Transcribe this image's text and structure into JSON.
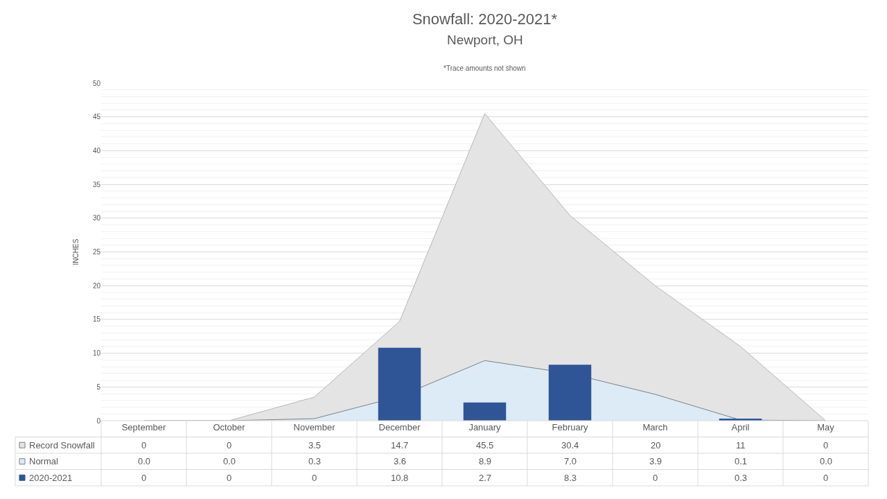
{
  "chart_data": {
    "type": "bar",
    "title": "Snowfall: 2020-2021*",
    "subtitle": "Newport, OH",
    "ylabel": "INCHES",
    "annotations": [
      "*Trace amounts not shown"
    ],
    "categories": [
      "September",
      "October",
      "November",
      "December",
      "January",
      "February",
      "March",
      "April",
      "May"
    ],
    "series": [
      {
        "name": "Record Snowfall",
        "type": "area",
        "color": "#e4e4e4",
        "values": [
          0,
          0,
          3.5,
          14.7,
          45.5,
          30.4,
          20,
          11,
          0
        ],
        "value_labels": [
          "0",
          "0",
          "3.5",
          "14.7",
          "45.5",
          "30.4",
          "20",
          "11",
          "0"
        ]
      },
      {
        "name": "Normal",
        "type": "area",
        "color": "#ddebf7",
        "values": [
          0.0,
          0.0,
          0.3,
          3.6,
          8.9,
          7.0,
          3.9,
          0.1,
          0.0
        ],
        "value_labels": [
          "0.0",
          "0.0",
          "0.3",
          "3.6",
          "8.9",
          "7.0",
          "3.9",
          "0.1",
          "0.0"
        ]
      },
      {
        "name": "2020-2021",
        "color": "#2f5597",
        "values": [
          0,
          0,
          0,
          10.8,
          2.7,
          8.3,
          0,
          0.3,
          0
        ],
        "value_labels": [
          "0",
          "0",
          "0",
          "10.8",
          "2.7",
          "8.3",
          "0",
          "0.3",
          "0"
        ]
      }
    ],
    "ylim": [
      0,
      50
    ],
    "yticks": [
      0,
      5,
      10,
      15,
      20,
      25,
      30,
      35,
      40,
      45,
      50
    ],
    "grid": "y",
    "legend": "bottom left"
  }
}
